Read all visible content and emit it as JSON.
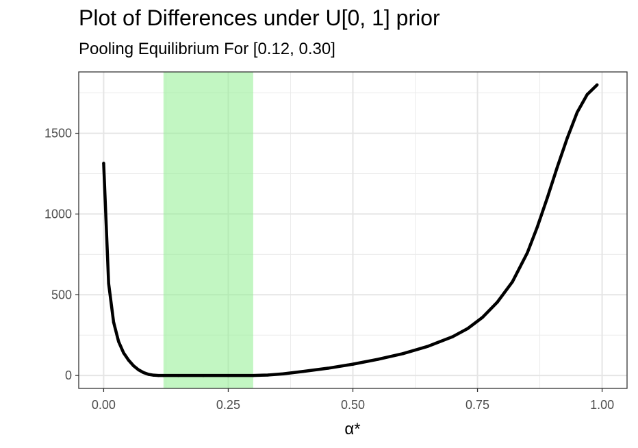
{
  "chart_data": {
    "type": "line",
    "title": "Plot of Differences under U[0, 1] prior",
    "subtitle": "Pooling Equilibrium For [0.12, 0.30]",
    "xlabel": "α*",
    "ylabel": "",
    "xlim": [
      -0.05,
      1.05
    ],
    "ylim": [
      -80,
      1880
    ],
    "xticks": [
      0.0,
      0.25,
      0.5,
      0.75,
      1.0
    ],
    "xtick_labels": [
      "0.00",
      "0.25",
      "0.50",
      "0.75",
      "1.00"
    ],
    "yticks": [
      0,
      500,
      1000,
      1500
    ],
    "ytick_labels": [
      "0",
      "500",
      "1000",
      "1500"
    ],
    "grid": true,
    "shaded_region": {
      "x": [
        0.12,
        0.3
      ],
      "color": "#90ee90"
    },
    "series": [
      {
        "color": "#000000",
        "x": [
          0.0,
          0.01,
          0.02,
          0.03,
          0.04,
          0.05,
          0.06,
          0.07,
          0.08,
          0.09,
          0.1,
          0.11,
          0.12,
          0.15,
          0.2,
          0.25,
          0.3,
          0.33,
          0.36,
          0.4,
          0.45,
          0.5,
          0.55,
          0.6,
          0.65,
          0.7,
          0.73,
          0.76,
          0.79,
          0.82,
          0.85,
          0.87,
          0.89,
          0.91,
          0.93,
          0.95,
          0.97,
          0.99
        ],
        "y": [
          1315,
          570,
          330,
          210,
          140,
          95,
          60,
          35,
          18,
          7,
          2,
          0,
          0,
          0,
          0,
          0,
          0,
          3,
          10,
          25,
          45,
          70,
          100,
          135,
          180,
          240,
          290,
          360,
          455,
          580,
          760,
          920,
          1100,
          1290,
          1470,
          1630,
          1740,
          1800
        ]
      }
    ]
  }
}
